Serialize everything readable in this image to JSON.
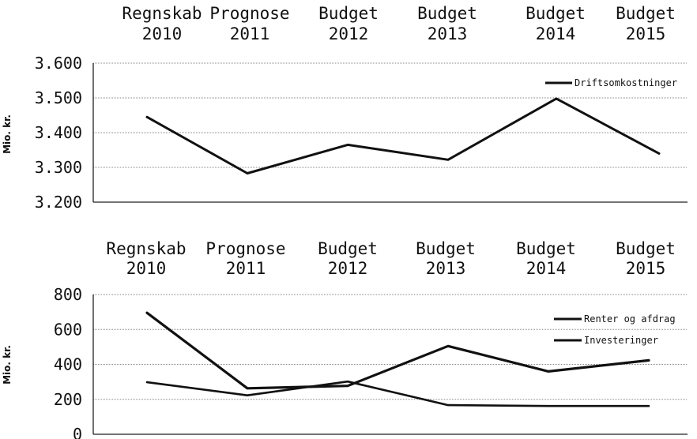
{
  "chart_data": [
    {
      "type": "line",
      "categories": [
        [
          "Regnskab",
          "2010"
        ],
        [
          "Prognose",
          "2011"
        ],
        [
          "Budget",
          "2012"
        ],
        [
          "Budget",
          "2013"
        ],
        [
          "Budget",
          "2014"
        ],
        [
          "Budget",
          "2015"
        ]
      ],
      "ylabel": "Mio. kr.",
      "ylim": [
        3200,
        3600
      ],
      "yticks": [
        3200,
        3300,
        3400,
        3500,
        3600
      ],
      "ytick_labels": [
        "3.200",
        "3.300",
        "3.400",
        "3.500",
        "3.600"
      ],
      "grid": true,
      "legend_position": "top-right",
      "series": [
        {
          "name": "Driftsomkostninger",
          "values": [
            3445,
            3283,
            3365,
            3322,
            3498,
            3340
          ],
          "color": "#111111"
        }
      ]
    },
    {
      "type": "line",
      "categories": [
        [
          "Regnskab",
          "2010"
        ],
        [
          "Prognose",
          "2011"
        ],
        [
          "Budget",
          "2012"
        ],
        [
          "Budget",
          "2013"
        ],
        [
          "Budget",
          "2014"
        ],
        [
          "Budget",
          "2015"
        ]
      ],
      "ylabel": "Mio. kr.",
      "ylim": [
        0,
        800
      ],
      "yticks": [
        0,
        200,
        400,
        600,
        800
      ],
      "ytick_labels": [
        "0",
        "200",
        "400",
        "600",
        "800"
      ],
      "grid": true,
      "legend_position": "top-right",
      "series": [
        {
          "name": "Renter og afdrag",
          "values": [
            695,
            263,
            277,
            505,
            360,
            423
          ],
          "color": "#111111"
        },
        {
          "name": "Investeringer",
          "values": [
            298,
            223,
            302,
            167,
            162,
            162
          ],
          "color": "#111111"
        }
      ]
    }
  ]
}
